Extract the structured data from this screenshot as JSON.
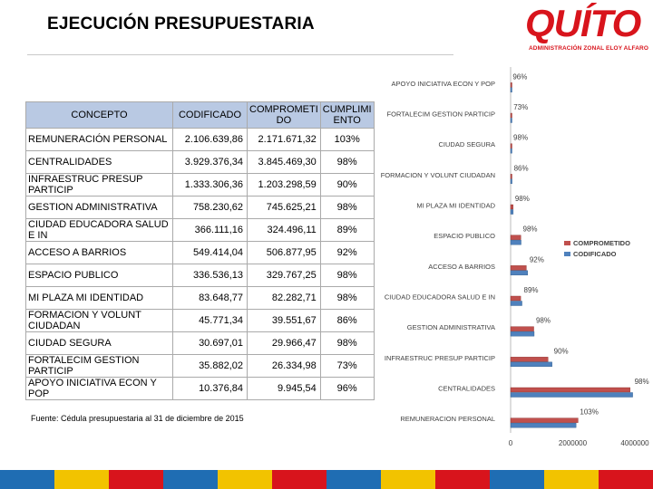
{
  "header": {
    "title": "EJECUCIÓN PRESUPUESTARIA",
    "logo_word": "QUÍTO",
    "logo_subtitle": "ADMINISTRACIÓN ZONAL ELOY ALFARO",
    "brand_color": "#d8141c"
  },
  "table": {
    "columns": [
      "CONCEPTO",
      "CODIFICADO",
      "COMPROMETI DO",
      "CUMPLIMI ENTO"
    ],
    "rows": [
      {
        "concepto": "REMUNERACIÓN PERSONAL",
        "codificado": "2.106.639,86",
        "comprometido": "2.171.671,32",
        "cumplimiento": "103%"
      },
      {
        "concepto": "CENTRALIDADES",
        "codificado": "3.929.376,34",
        "comprometido": "3.845.469,30",
        "cumplimiento": "98%"
      },
      {
        "concepto": "INFRAESTRUC PRESUP PARTICIP",
        "codificado": "1.333.306,36",
        "comprometido": "1.203.298,59",
        "cumplimiento": "90%"
      },
      {
        "concepto": "GESTION ADMINISTRATIVA",
        "codificado": "758.230,62",
        "comprometido": "745.625,21",
        "cumplimiento": "98%"
      },
      {
        "concepto": "CIUDAD EDUCADORA SALUD E IN",
        "codificado": "366.111,16",
        "comprometido": "324.496,11",
        "cumplimiento": "89%"
      },
      {
        "concepto": "ACCESO A BARRIOS",
        "codificado": "549.414,04",
        "comprometido": "506.877,95",
        "cumplimiento": "92%"
      },
      {
        "concepto": "ESPACIO PUBLICO",
        "codificado": "336.536,13",
        "comprometido": "329.767,25",
        "cumplimiento": "98%"
      },
      {
        "concepto": "MI PLAZA MI IDENTIDAD",
        "codificado": "83.648,77",
        "comprometido": "82.282,71",
        "cumplimiento": "98%"
      },
      {
        "concepto": "FORMACION Y VOLUNT CIUDADAN",
        "codificado": "45.771,34",
        "comprometido": "39.551,67",
        "cumplimiento": "86%"
      },
      {
        "concepto": "CIUDAD SEGURA",
        "codificado": "30.697,01",
        "comprometido": "29.966,47",
        "cumplimiento": "98%"
      },
      {
        "concepto": "FORTALECIM GESTION PARTICIP",
        "codificado": "35.882,02",
        "comprometido": "26.334,98",
        "cumplimiento": "73%"
      },
      {
        "concepto": "APOYO INICIATIVA ECON Y POP",
        "codificado": "10.376,84",
        "comprometido": "9.945,54",
        "cumplimiento": "96%"
      }
    ]
  },
  "note": "Fuente: Cédula presupuestaria al 31 de diciembre de 2015",
  "chart_data": {
    "type": "bar",
    "orientation": "horizontal",
    "categories": [
      "REMUNERACION PERSONAL",
      "CENTRALIDADES",
      "INFRAESTRUC PRESUP PARTICIP",
      "GESTION ADMINISTRATIVA",
      "CIUDAD EDUCADORA SALUD E IN",
      "ACCESO A BARRIOS",
      "ESPACIO PUBLICO",
      "MI PLAZA MI IDENTIDAD",
      "FORMACION Y VOLUNT CIUDADAN",
      "CIUDAD SEGURA",
      "FORTALECIM GESTION PARTICIP",
      "APOYO INICIATIVA ECON Y POP"
    ],
    "series": [
      {
        "name": "COMPROMETIDO",
        "color": "#c0504d",
        "values": [
          2171671.32,
          3845469.3,
          1203298.59,
          745625.21,
          324496.11,
          506877.95,
          329767.25,
          82282.71,
          39551.67,
          29966.47,
          26334.98,
          9945.54
        ]
      },
      {
        "name": "CODIFICADO",
        "color": "#4f81bd",
        "values": [
          2106639.86,
          3929376.34,
          1333306.36,
          758230.62,
          366111.16,
          549414.04,
          336536.13,
          83648.77,
          45771.34,
          30697.01,
          35882.02,
          10376.84
        ]
      }
    ],
    "data_labels": [
      "103%",
      "98%",
      "90%",
      "98%",
      "89%",
      "92%",
      "98%",
      "98%",
      "86%",
      "98%",
      "73%",
      "96%"
    ],
    "xticks": [
      "0",
      "2000000",
      "4000000"
    ],
    "xlim": [
      0,
      4000000
    ],
    "legend_position": "right",
    "grid": false
  },
  "bottom_bar_colors": [
    "#1f6db3",
    "#f2c300",
    "#d8141c",
    "#1f6db3",
    "#f2c300",
    "#d8141c",
    "#1f6db3",
    "#f2c300",
    "#d8141c",
    "#1f6db3",
    "#f2c300",
    "#d8141c"
  ]
}
